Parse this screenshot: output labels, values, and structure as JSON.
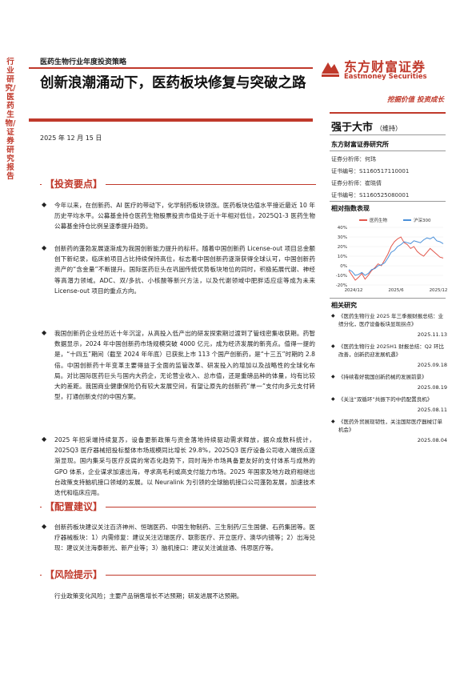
{
  "side_label": "行业研究/医药生物/证券研究报告",
  "header": {
    "report_type": "医药生物行业年度投资策略",
    "title": "创新浪潮涌动下，医药板块修复与突破之路",
    "date": "2025 年 12 月 15 日"
  },
  "logo": {
    "name_cn": "东方财富证券",
    "name_en": "Eastmoney Securities",
    "slogan": "挖掘价值 投资成长"
  },
  "rating": {
    "main": "强于大市",
    "sub": "（维持）"
  },
  "institute": "东方财富证券研究所",
  "analysts": [
    "证券分析师：何玮",
    "证书编号：S1160517110001",
    "证券分析师：崔晓倩",
    "证书编号：S1160525080001"
  ],
  "index_section": {
    "title": "相对指数表现",
    "chart_data": {
      "type": "line",
      "series": [
        {
          "name": "医药生物",
          "color": "#e2574c",
          "values": [
            -5,
            -10,
            -15,
            -12,
            -8,
            -14,
            -10,
            -5,
            -2,
            2,
            0,
            6,
            12,
            20,
            25,
            28,
            30,
            24,
            22,
            18,
            20,
            15,
            12,
            10,
            14,
            18,
            15,
            12,
            9,
            8
          ]
        },
        {
          "name": "沪深300",
          "color": "#4a90d9",
          "values": [
            -4,
            -6,
            -10,
            -9,
            -7,
            -10,
            -8,
            -4,
            -3,
            0,
            1,
            3,
            8,
            14,
            16,
            20,
            22,
            25,
            24,
            23,
            26,
            25,
            24,
            27,
            29,
            28,
            30,
            26,
            25,
            23
          ]
        }
      ],
      "x_ticks": [
        "2024/12",
        "2025/6",
        "2025/12"
      ],
      "y_ticks": [
        "40%",
        "30%",
        "20%",
        "10%",
        "0%",
        "-10%",
        "-20%"
      ],
      "ylim": [
        -20,
        40
      ]
    }
  },
  "related": {
    "title": "相关研究",
    "items": [
      {
        "text": "《医药生物行业 2025 年三季报财报总结：业绩分化，医疗设备板块显现拐点》",
        "date": "2025.11.13"
      },
      {
        "text": "《医药生物行业 2025H1 财报总结：Q2 环比改善，创新药迎发展机遇》",
        "date": "2025.09.18"
      },
      {
        "text": "《持续看好我国创新药械的发展前景》",
        "date": "2025.08.19"
      },
      {
        "text": "《关注“双循环”共振下的中药配置良机》",
        "date": "2025.08.11"
      },
      {
        "text": "《医药外贸展现韧性，关注国际医疗器械订单机会》",
        "date": "2025.08.04"
      }
    ]
  },
  "sections": {
    "invest": {
      "title": "【投资要点】",
      "paras": [
        "今年以来，在创新药、AI 医疗的带动下，化学制药板块领涨。医药板块估值水平接近最近 10 年历史平均水平。公募基金持仓医药生物股票投资市值处于近十年相对低位，2025Q1-3 医药生物公募基金持仓比例呈逐季提升趋势。",
        "创新药的蓬勃发展逐渐成为我国创新能力提升的标杆。随着中国创新药 License-out 项目总金额创下新纪录，临床前项目占比持续保持高位，标志着中国创新药逐渐获得全球认可，中国创新药资产的“含金量”不断提升。国际医药巨头在巩固传统优势板块地位的同时，积极拓展代谢、神经等高潜力领域。ADC、双/多抗、小核酸等新兴方法，以及代谢领域中肥胖适应症等成为未来 License-out 项目的重点方向。",
        "我国创新药企业经历近十年沉淀，从高投入低产出的研发探索期过渡到了管线密集收获期。药智数据显示，2024 年中国创新药市场规模突破 4000 亿元，成为经济发展的新亮点。值得一提的是，“十四五”期间（截至 2024 年年底）已获批上市 113 个国产创新药，是“十三五”时期的 2.8 倍。中国创新药十年变革主要得益于全面的监管改革、研发投入的增加以及战略性的全球化布局。对比国际医药巨头与国内大药企，无论营业收入、总市值，还是重磅品种的体量，均有比较大的差距。我国商业健康保险仍有较大发展空间，有望让原先的创新药“单一”支付向多元支付转型，打通创新支付的中国方案。",
        "2025 年招采端持续复苏，设备更新政策与资金落地持续驱动需求释放，据众成数科统计，2025Q3 医疗器械招投标整体市场规模同比增长 29.8%，2025Q3 医疗设备公司收入端拐点逐渐显现。国内集采与医疗反腐的常态化趋势下，同时海外市场具备更友好的支付体系与成熟的 GPO 体系，企业谋求加速出海，寻求高毛利或高支付能力市场。2025 年国家及地方政府相继出台政策支持脑机接口领域的发展。以 Neuralink 为引领的全球脑机接口公司蓬勃发展，加速技术迭代和临床应用。"
      ]
    },
    "config": {
      "title": "【配置建议】",
      "paras": [
        "创新药板块建议关注百济神州、恒瑞医药、中国生物制药、三生制药/三生国健、石药集团等。医疗器械板块：1）内需修复：建议关注迈瑞医疗、联影医疗、开立医疗、澳华内镜等；2）出海兑现：建议关注海泰新光、新产业等；3）脑机接口：建议关注诚益通、伟思医疗等。"
      ]
    },
    "risk": {
      "title": "【风险提示】",
      "paras": [
        "行业政策变化风险；主要产品销售增长不达预期；研发进展不达预期。"
      ]
    }
  }
}
